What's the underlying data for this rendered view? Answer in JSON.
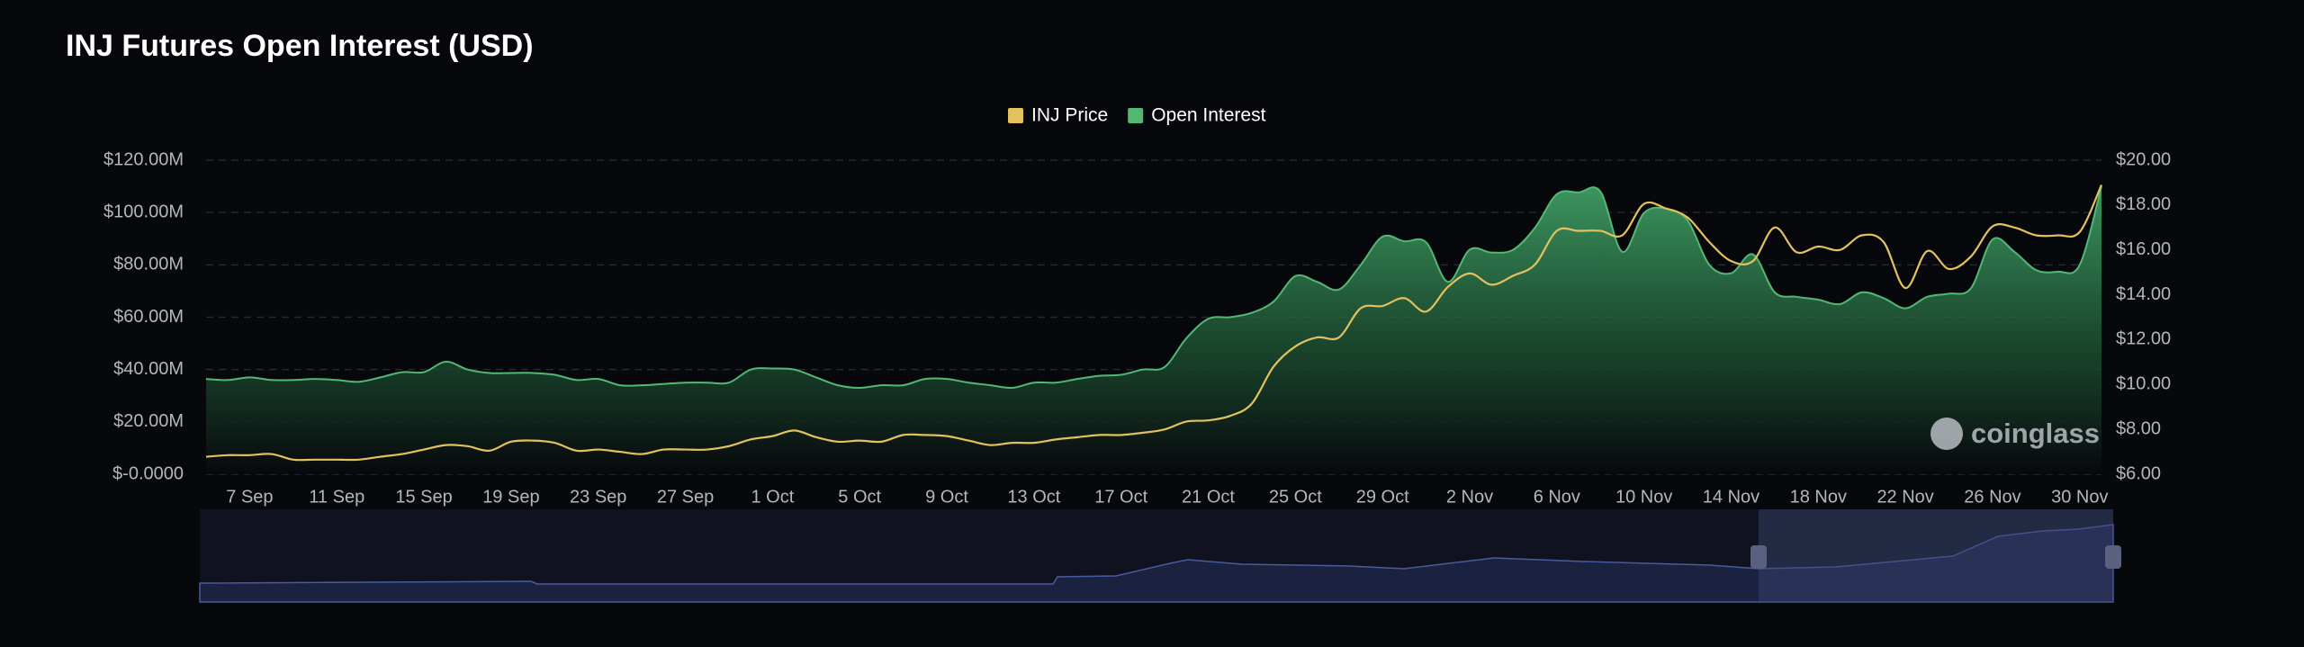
{
  "chart_data": {
    "type": "area",
    "title": "INJ Futures Open Interest (USD)",
    "watermark": "coinglass",
    "categories": [
      null,
      null,
      "7 Sep",
      null,
      null,
      null,
      "11 Sep",
      null,
      null,
      null,
      "15 Sep",
      null,
      null,
      null,
      "19 Sep",
      null,
      null,
      null,
      "23 Sep",
      null,
      null,
      null,
      "27 Sep",
      null,
      null,
      null,
      "1 Oct",
      null,
      null,
      null,
      "5 Oct",
      null,
      null,
      null,
      "9 Oct",
      null,
      null,
      null,
      "13 Oct",
      null,
      null,
      null,
      "17 Oct",
      null,
      null,
      null,
      "21 Oct",
      null,
      null,
      null,
      "25 Oct",
      null,
      null,
      null,
      "29 Oct",
      null,
      null,
      null,
      "2 Nov",
      null,
      null,
      null,
      "6 Nov",
      null,
      null,
      null,
      "10 Nov",
      null,
      null,
      null,
      "14 Nov",
      null,
      null,
      null,
      "18 Nov",
      null,
      null,
      null,
      "22 Nov",
      null,
      null,
      null,
      "26 Nov",
      null,
      null,
      null,
      "30 Nov",
      null
    ],
    "series": [
      {
        "name": "INJ Price",
        "type": "line",
        "color": "#e3c15f",
        "axis": "y2",
        "values": [
          6.78,
          6.85,
          6.85,
          6.9,
          6.65,
          6.65,
          6.65,
          6.65,
          6.78,
          6.9,
          7.1,
          7.3,
          7.25,
          7.05,
          7.45,
          7.5,
          7.4,
          7.05,
          7.1,
          7.0,
          6.9,
          7.1,
          7.1,
          7.1,
          7.25,
          7.55,
          7.7,
          7.95,
          7.65,
          7.45,
          7.5,
          7.45,
          7.75,
          7.75,
          7.7,
          7.5,
          7.3,
          7.4,
          7.4,
          7.55,
          7.65,
          7.75,
          7.75,
          7.85,
          8.0,
          8.35,
          8.4,
          8.6,
          9.15,
          10.8,
          11.7,
          12.1,
          12.1,
          13.4,
          13.5,
          13.85,
          13.25,
          14.35,
          14.95,
          14.45,
          14.85,
          15.35,
          16.85,
          16.85,
          16.85,
          16.65,
          18.05,
          17.85,
          17.45,
          16.35,
          15.5,
          15.5,
          17.0,
          15.9,
          16.15,
          16.0,
          16.65,
          16.35,
          14.3,
          15.95,
          15.15,
          15.7,
          17.05,
          17.0,
          16.65,
          16.65,
          16.8,
          18.9
        ]
      },
      {
        "name": "Open Interest",
        "type": "area",
        "color": "#52b874",
        "values": [
          36400000,
          36000000,
          37000000,
          36000000,
          36000000,
          36400000,
          36000000,
          35300000,
          37000000,
          39000000,
          39000000,
          43000000,
          40000000,
          38700000,
          38700000,
          38700000,
          38000000,
          36000000,
          36400000,
          34000000,
          34000000,
          34500000,
          35000000,
          35000000,
          35000000,
          40000000,
          40400000,
          40000000,
          37000000,
          34000000,
          33000000,
          34000000,
          34000000,
          36400000,
          36400000,
          35000000,
          34000000,
          33000000,
          35000000,
          35000000,
          36400000,
          37600000,
          38000000,
          40000000,
          41000000,
          52000000,
          59400000,
          60000000,
          61700000,
          66000000,
          75700000,
          73500000,
          70600000,
          80000000,
          90800000,
          89000000,
          88600000,
          73500000,
          85800000,
          84700000,
          85800000,
          94200000,
          107000000,
          107700000,
          108000000,
          85000000,
          99800000,
          101500000,
          97000000,
          80000000,
          76800000,
          84000000,
          69500000,
          67800000,
          66700000,
          65000000,
          69500000,
          67300000,
          63400000,
          67800000,
          69000000,
          71000000,
          89700000,
          85000000,
          78000000,
          77400000,
          80000000,
          110000000
        ]
      }
    ],
    "ylim": [
      0,
      120000000
    ],
    "yticks": [
      {
        "value": 0,
        "label": "$-0.0000"
      },
      {
        "value": 20000000,
        "label": "$20.00M"
      },
      {
        "value": 40000000,
        "label": "$40.00M"
      },
      {
        "value": 60000000,
        "label": "$60.00M"
      },
      {
        "value": 80000000,
        "label": "$80.00M"
      },
      {
        "value": 100000000,
        "label": "$100.00M"
      },
      {
        "value": 120000000,
        "label": "$120.00M"
      }
    ],
    "y2lim": [
      6,
      20
    ],
    "y2ticks": [
      {
        "value": 6,
        "label": "$6.00"
      },
      {
        "value": 8,
        "label": "$8.00"
      },
      {
        "value": 10,
        "label": "$10.00"
      },
      {
        "value": 12,
        "label": "$12.00"
      },
      {
        "value": 14,
        "label": "$14.00"
      },
      {
        "value": 16,
        "label": "$16.00"
      },
      {
        "value": 18,
        "label": "$18.00"
      },
      {
        "value": 20,
        "label": "$20.00"
      }
    ],
    "grid": true,
    "legend": "top"
  }
}
